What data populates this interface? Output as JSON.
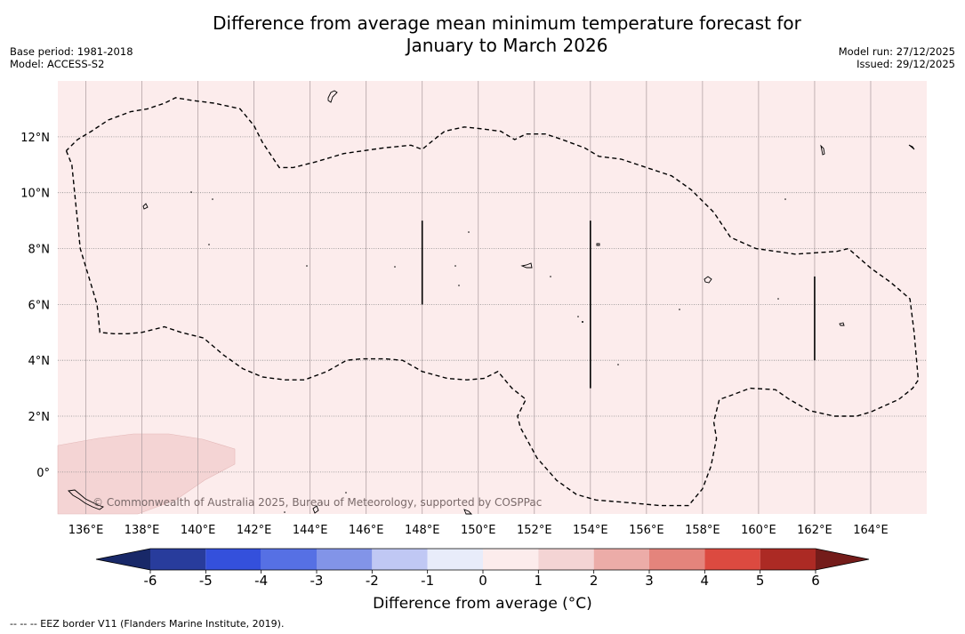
{
  "title_line1": "Difference from average mean minimum temperature forecast for",
  "title_line2": "January to March 2026",
  "base_period": "Base period: 1981-2018",
  "model": "Model: ACCESS-S2",
  "model_run": "Model run: 27/12/2025",
  "issued": "Issued: 29/12/2025",
  "copyright": "© Commonwealth of Australia 2025, Bureau of Meteorology, supported by COSPPac",
  "footnote": "--  --  -- EEZ border V11 (Flanders Marine Institute, 2019).",
  "colorbar_title": "Difference from average (°C)",
  "map": {
    "lon_labels": [
      "136°E",
      "138°E",
      "140°E",
      "142°E",
      "144°E",
      "146°E",
      "148°E",
      "150°E",
      "152°E",
      "154°E",
      "156°E",
      "158°E",
      "160°E",
      "162°E",
      "164°E"
    ],
    "lon_values": [
      136,
      138,
      140,
      142,
      144,
      146,
      148,
      150,
      152,
      154,
      156,
      158,
      160,
      162,
      164
    ],
    "lat_labels": [
      "12°N",
      "10°N",
      "8°N",
      "6°N",
      "4°N",
      "2°N",
      "0°"
    ],
    "lat_values": [
      12,
      10,
      8,
      6,
      4,
      2,
      0
    ],
    "lon_range": [
      135,
      166
    ],
    "lat_range": [
      -1.5,
      14
    ],
    "background_anomaly_category": "0 to 1",
    "lower_left_anomaly_category": "1 to 2",
    "eez_boundary_lonlat": [
      [
        135.3,
        11.5
      ],
      [
        135.5,
        11.0
      ],
      [
        135.6,
        10.0
      ],
      [
        135.7,
        9.0
      ],
      [
        135.8,
        8.0
      ],
      [
        136.1,
        7.0
      ],
      [
        136.4,
        6.0
      ],
      [
        136.5,
        5.0
      ],
      [
        137.0,
        4.95
      ],
      [
        137.5,
        4.95
      ],
      [
        138.0,
        5.0
      ],
      [
        138.8,
        5.2
      ],
      [
        139.4,
        5.0
      ],
      [
        140.2,
        4.8
      ],
      [
        140.9,
        4.2
      ],
      [
        141.6,
        3.7
      ],
      [
        142.3,
        3.4
      ],
      [
        143.1,
        3.3
      ],
      [
        143.8,
        3.3
      ],
      [
        144.6,
        3.6
      ],
      [
        145.3,
        4.0
      ],
      [
        145.8,
        4.05
      ],
      [
        146.7,
        4.05
      ],
      [
        147.3,
        4.0
      ],
      [
        148.0,
        3.6
      ],
      [
        148.9,
        3.35
      ],
      [
        149.6,
        3.3
      ],
      [
        150.2,
        3.35
      ],
      [
        150.7,
        3.6
      ],
      [
        151.2,
        3.0
      ],
      [
        151.7,
        2.6
      ],
      [
        151.4,
        2.0
      ],
      [
        151.5,
        1.6
      ],
      [
        152.1,
        0.5
      ],
      [
        152.8,
        -0.3
      ],
      [
        153.5,
        -0.8
      ],
      [
        154.2,
        -1.0
      ],
      [
        155.4,
        -1.1
      ],
      [
        156.5,
        -1.2
      ],
      [
        157.5,
        -1.2
      ],
      [
        158.0,
        -0.6
      ],
      [
        158.3,
        0.2
      ],
      [
        158.5,
        1.2
      ],
      [
        158.4,
        1.8
      ],
      [
        158.6,
        2.6
      ],
      [
        158.9,
        2.7
      ],
      [
        159.7,
        3.0
      ],
      [
        160.6,
        2.95
      ],
      [
        161.1,
        2.6
      ],
      [
        161.8,
        2.2
      ],
      [
        162.7,
        2.0
      ],
      [
        163.5,
        2.0
      ],
      [
        164.0,
        2.15
      ],
      [
        165.0,
        2.6
      ],
      [
        165.5,
        3.0
      ],
      [
        165.7,
        3.3
      ],
      [
        165.55,
        5.0
      ],
      [
        165.4,
        6.2
      ],
      [
        164.7,
        6.8
      ],
      [
        164.0,
        7.3
      ],
      [
        163.2,
        8.0
      ],
      [
        162.8,
        7.9
      ],
      [
        161.3,
        7.8
      ],
      [
        159.9,
        8.0
      ],
      [
        159.0,
        8.4
      ],
      [
        158.4,
        9.3
      ],
      [
        157.6,
        10.1
      ],
      [
        156.9,
        10.6
      ],
      [
        156.0,
        10.9
      ],
      [
        155.1,
        11.2
      ],
      [
        154.3,
        11.3
      ],
      [
        153.8,
        11.6
      ],
      [
        153.0,
        11.9
      ],
      [
        152.4,
        12.1
      ],
      [
        151.7,
        12.1
      ],
      [
        151.3,
        11.9
      ],
      [
        150.8,
        12.2
      ],
      [
        150.0,
        12.3
      ],
      [
        149.5,
        12.35
      ],
      [
        148.8,
        12.2
      ],
      [
        148.3,
        11.8
      ],
      [
        148.0,
        11.55
      ],
      [
        147.6,
        11.7
      ],
      [
        146.6,
        11.6
      ],
      [
        145.2,
        11.4
      ],
      [
        144.2,
        11.1
      ],
      [
        143.4,
        10.9
      ],
      [
        142.9,
        10.9
      ],
      [
        142.3,
        11.8
      ],
      [
        142.0,
        12.4
      ],
      [
        141.5,
        13.0
      ],
      [
        140.6,
        13.2
      ],
      [
        139.8,
        13.3
      ],
      [
        139.2,
        13.4
      ],
      [
        138.8,
        13.2
      ],
      [
        138.2,
        13.0
      ],
      [
        137.6,
        12.9
      ],
      [
        136.8,
        12.6
      ],
      [
        136.2,
        12.2
      ],
      [
        135.7,
        11.9
      ],
      [
        135.3,
        11.5
      ]
    ],
    "boundary_segments_lonlat": [
      [
        [
          148.0,
          9.0
        ],
        [
          148.0,
          6.0
        ]
      ],
      [
        [
          154.0,
          9.0
        ],
        [
          154.0,
          3.0
        ]
      ],
      [
        [
          162.0,
          7.0
        ],
        [
          162.0,
          4.0
        ]
      ]
    ]
  },
  "colorbar": {
    "tick_labels": [
      "-6",
      "-5",
      "-4",
      "-3",
      "-2",
      "-1",
      "0",
      "1",
      "2",
      "3",
      "4",
      "5",
      "6"
    ],
    "tick_values": [
      -6,
      -5,
      -4,
      -3,
      -2,
      -1,
      0,
      1,
      2,
      3,
      4,
      5,
      6
    ],
    "under_color": "#182868",
    "over_color": "#741c1a",
    "bin_colors": [
      "#283c9c",
      "#3450dc",
      "#5670e4",
      "#8294e8",
      "#c0c8f4",
      "#e8ecfa",
      "#fcecec",
      "#f4d4d4",
      "#ecaca8",
      "#e4847c",
      "#dc4a40",
      "#ac2a24"
    ]
  }
}
